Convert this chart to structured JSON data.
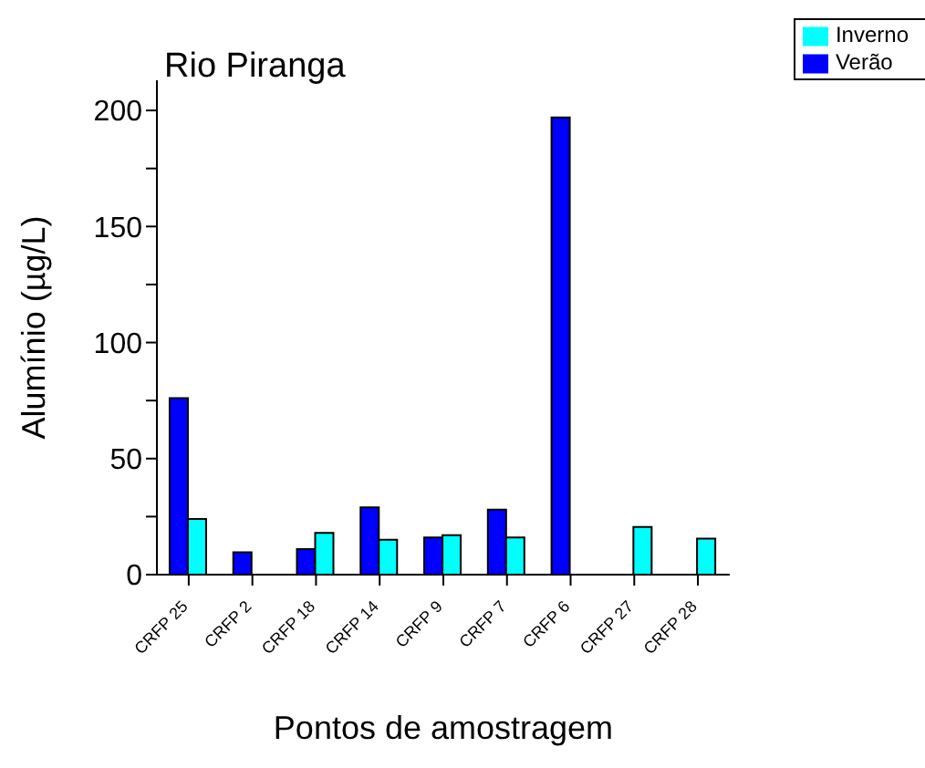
{
  "chart_data": {
    "type": "bar",
    "title": "Rio Piranga",
    "xlabel": "Pontos de amostragem",
    "ylabel": "Alumínio (µg/L)",
    "categories": [
      "CRFP 25",
      "CRFP 2",
      "CRFP 18",
      "CRFP 14",
      "CRFP 9",
      "CRFP 7",
      "CRFP 6",
      "CRFP 27",
      "CRFP 28"
    ],
    "series": [
      {
        "name": "Verão",
        "color": "#0000ff",
        "values": [
          76,
          9.6,
          11,
          29,
          16,
          28,
          197,
          null,
          null
        ]
      },
      {
        "name": "Inverno",
        "color": "#00ffff",
        "values": [
          24,
          null,
          18,
          15,
          17,
          16,
          null,
          20.5,
          15.5
        ]
      }
    ],
    "ylim": [
      0,
      213
    ],
    "yticks": [
      0,
      {
        "value": 25,
        "label": null
      },
      50,
      {
        "value": 75,
        "label": null
      },
      100,
      {
        "value": 125,
        "label": null
      },
      150,
      {
        "value": 175,
        "label": null
      },
      200
    ],
    "grid": false,
    "legend": "top right"
  }
}
